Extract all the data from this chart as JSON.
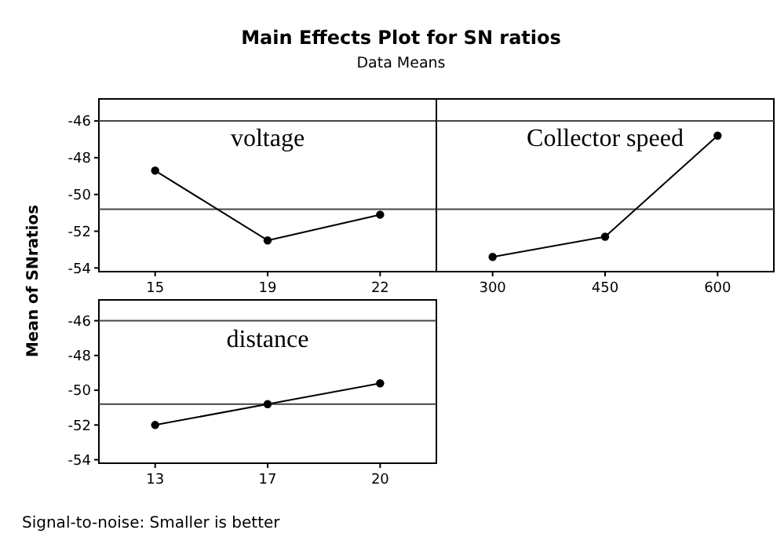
{
  "chart_data": [
    {
      "type": "line",
      "title": "Main Effects Plot for SN ratios",
      "subtitle": "Data Means",
      "ylabel": "Mean of SNratios",
      "categories": [
        "15",
        "19",
        "22"
      ],
      "values": [
        -48.7,
        -52.5,
        -51.1
      ],
      "color": "#000000",
      "marker": "circle",
      "ylim": [
        -54.2,
        -44.8
      ],
      "yticks": [
        -54,
        -52,
        -50,
        -48,
        -46
      ],
      "ref_lines": [
        {
          "axis": "y",
          "value": -46
        },
        {
          "axis": "y",
          "value": -50.8
        }
      ],
      "annotations": [
        "voltage"
      ]
    },
    {
      "type": "line",
      "categories": [
        "300",
        "450",
        "600"
      ],
      "values": [
        -53.4,
        -52.3,
        -46.8
      ],
      "color": "#000000",
      "marker": "circle",
      "ylim": [
        -54.2,
        -44.8
      ],
      "yticks": [
        -54,
        -52,
        -50,
        -48,
        -46
      ],
      "tick_labels": "x",
      "ref_lines": [
        {
          "axis": "y",
          "value": -46
        },
        {
          "axis": "y",
          "value": -50.8
        }
      ],
      "annotations": [
        "Collector speed"
      ]
    },
    {
      "type": "line",
      "categories": [
        "13",
        "17",
        "20"
      ],
      "values": [
        -52.0,
        -50.8,
        -49.6
      ],
      "color": "#000000",
      "marker": "circle",
      "ylim": [
        -54.2,
        -44.8
      ],
      "yticks": [
        -54,
        -52,
        -50,
        -48,
        -46
      ],
      "ref_lines": [
        {
          "axis": "y",
          "value": -46
        },
        {
          "axis": "y",
          "value": -50.8
        }
      ],
      "annotations": [
        "distance",
        "Signal-to-noise: Smaller is better"
      ]
    }
  ]
}
